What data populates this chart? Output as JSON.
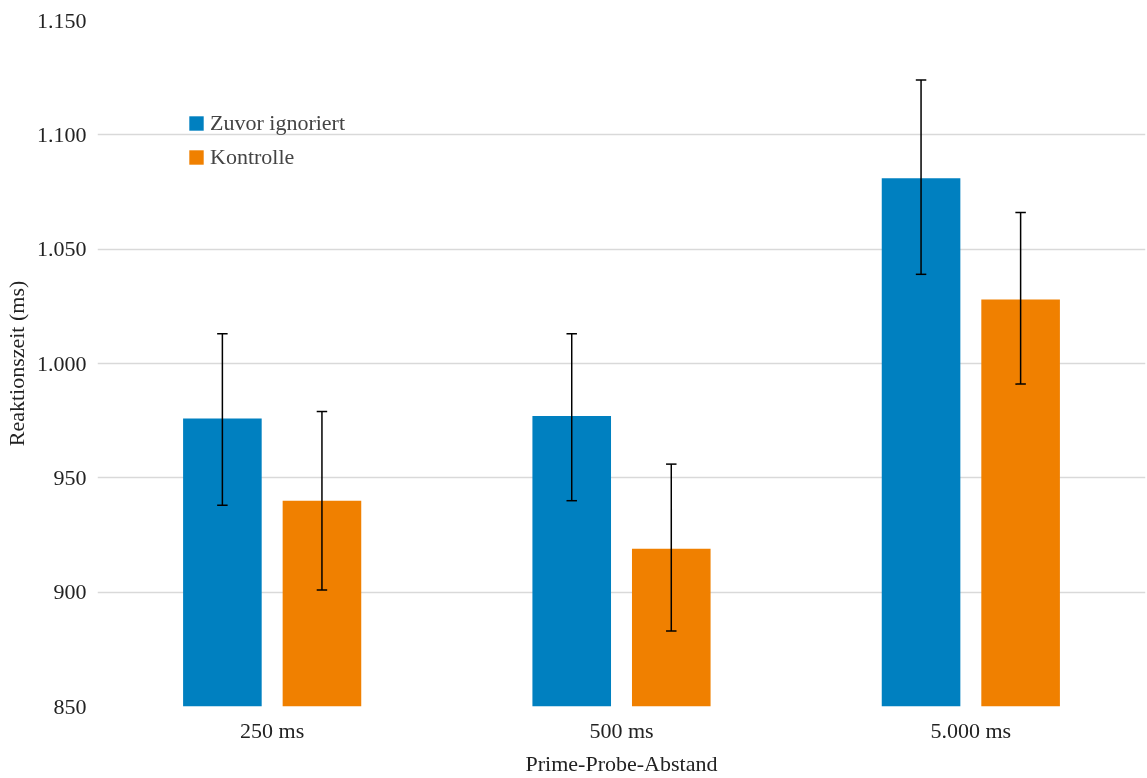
{
  "chart_data": {
    "type": "bar",
    "xlabel": "Prime-Probe-Abstand",
    "ylabel": "Reaktionszeit (ms)",
    "categories": [
      "250 ms",
      "500 ms",
      "5.000 ms"
    ],
    "series": [
      {
        "name": "Zuvor ignoriert",
        "color": "#0080c0",
        "values": [
          976,
          977,
          1081
        ],
        "errors": [
          [
            938,
            1013
          ],
          [
            940,
            1013
          ],
          [
            1039,
            1124
          ]
        ]
      },
      {
        "name": "Kontrolle",
        "color": "#f08000",
        "values": [
          940,
          919,
          1028
        ],
        "errors": [
          [
            901,
            979
          ],
          [
            883,
            956
          ],
          [
            991,
            1066
          ]
        ]
      }
    ],
    "ylim": [
      850,
      1150
    ],
    "yticks": [
      {
        "value": 850,
        "label": "850"
      },
      {
        "value": 900,
        "label": "900"
      },
      {
        "value": 950,
        "label": "950"
      },
      {
        "value": 1000,
        "label": "1.000"
      },
      {
        "value": 1050,
        "label": "1.050"
      },
      {
        "value": 1100,
        "label": "1.100"
      },
      {
        "value": 1150,
        "label": "1.150"
      }
    ],
    "grid": "y",
    "legend": "top left"
  }
}
